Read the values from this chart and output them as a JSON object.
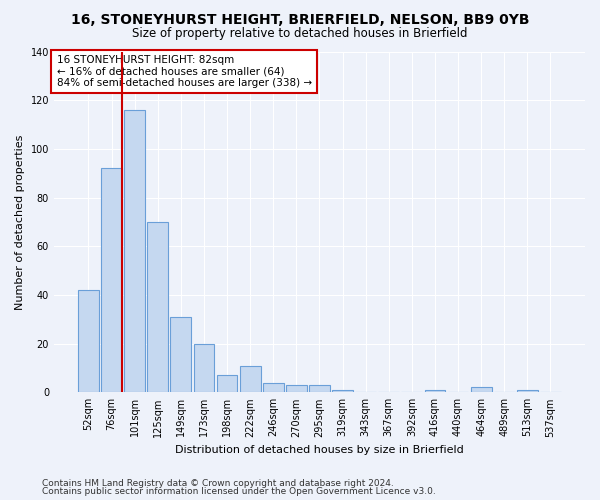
{
  "title": "16, STONEYHURST HEIGHT, BRIERFIELD, NELSON, BB9 0YB",
  "subtitle": "Size of property relative to detached houses in Brierfield",
  "xlabel": "Distribution of detached houses by size in Brierfield",
  "ylabel": "Number of detached properties",
  "categories": [
    "52sqm",
    "76sqm",
    "101sqm",
    "125sqm",
    "149sqm",
    "173sqm",
    "198sqm",
    "222sqm",
    "246sqm",
    "270sqm",
    "295sqm",
    "319sqm",
    "343sqm",
    "367sqm",
    "392sqm",
    "416sqm",
    "440sqm",
    "464sqm",
    "489sqm",
    "513sqm",
    "537sqm"
  ],
  "values": [
    42,
    92,
    116,
    70,
    31,
    20,
    7,
    11,
    4,
    3,
    3,
    1,
    0,
    0,
    0,
    1,
    0,
    2,
    0,
    1,
    0
  ],
  "bar_color": "#c5d8f0",
  "bar_edge_color": "#6a9fd8",
  "vline_color": "#cc0000",
  "annotation_text": "16 STONEYHURST HEIGHT: 82sqm\n← 16% of detached houses are smaller (64)\n84% of semi-detached houses are larger (338) →",
  "annotation_box_color": "#ffffff",
  "annotation_box_edge_color": "#cc0000",
  "ylim": [
    0,
    140
  ],
  "yticks": [
    0,
    20,
    40,
    60,
    80,
    100,
    120,
    140
  ],
  "footer_line1": "Contains HM Land Registry data © Crown copyright and database right 2024.",
  "footer_line2": "Contains public sector information licensed under the Open Government Licence v3.0.",
  "background_color": "#eef2fa",
  "grid_color": "#ffffff",
  "title_fontsize": 10,
  "subtitle_fontsize": 8.5,
  "ylabel_fontsize": 8,
  "xlabel_fontsize": 8,
  "tick_fontsize": 7,
  "footer_fontsize": 6.5,
  "annotation_fontsize": 7.5
}
